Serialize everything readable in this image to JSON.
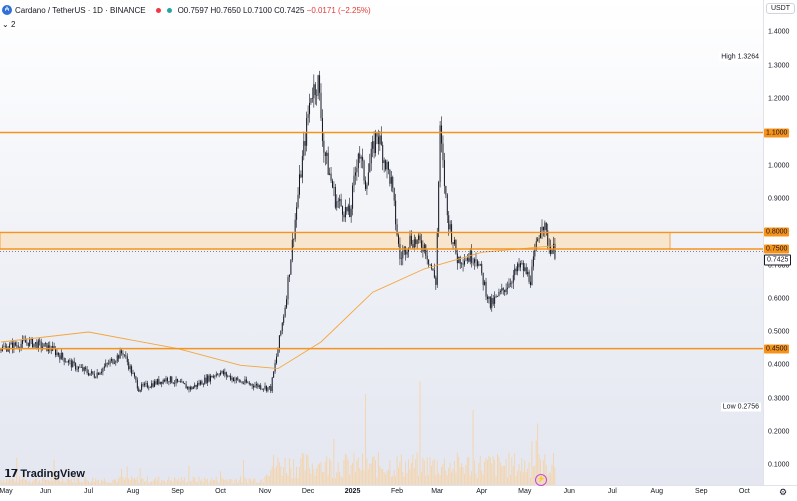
{
  "header": {
    "title": "Cardano / TetherUS · 1D · BINANCE",
    "open": "O0.7597",
    "high": "H0.7650",
    "low": "L0.7100",
    "close": "C0.7425",
    "change": "−0.0171 (−2.25%)",
    "indicator_count": "2",
    "currency": "USDT"
  },
  "labels": {
    "high_label": "High",
    "high_value": "1.3264",
    "low_label": "Low",
    "low_value": "0.2756"
  },
  "branding": {
    "logo_text": "TradingView"
  },
  "colors": {
    "level": "#f7931a",
    "zone_fill": "#f9e3c5",
    "candle": "#131722",
    "ma": "#f4a53c",
    "volume": "#f5d3a8"
  },
  "chart_data": {
    "type": "candlestick",
    "symbol": "ADAUSDT",
    "exchange": "BINANCE",
    "interval": "1D",
    "ylim": [
      0.0,
      1.45
    ],
    "y_scale": "log",
    "y_ticks": [
      "1.4000",
      "1.3000",
      "1.2000",
      "1.1000",
      "1.0000",
      "0.9000",
      "0.8000",
      "0.7000",
      "0.6000",
      "0.5000",
      "0.4000",
      "0.3000",
      "0.2000",
      "0.1000"
    ],
    "y_badges": [
      {
        "value": "1.1000",
        "bg": "#f7931a"
      },
      {
        "value": "0.8000",
        "bg": "#f7931a"
      },
      {
        "value": "0.7500",
        "bg": "#f7931a"
      },
      {
        "value": "0.7425",
        "bg": "#ffffff"
      },
      {
        "value": "0.4500",
        "bg": "#f7931a"
      }
    ],
    "x_ticks": [
      "May",
      "Jun",
      "Jul",
      "Aug",
      "Sep",
      "Oct",
      "Nov",
      "Dec",
      "2025",
      "Feb",
      "Mar",
      "Apr",
      "May",
      "Jun",
      "Jul",
      "Aug",
      "Sep",
      "Oct"
    ],
    "horizontal_levels": [
      1.1,
      0.8,
      0.75,
      0.45
    ],
    "zone": {
      "from": 0.75,
      "to": 0.8
    },
    "last_price": 0.7425,
    "high": 1.3264,
    "low": 0.2756,
    "price_path": [
      [
        "2024-05-01",
        0.45
      ],
      [
        "2024-05-20",
        0.47
      ],
      [
        "2024-06-05",
        0.45
      ],
      [
        "2024-06-20",
        0.4
      ],
      [
        "2024-07-05",
        0.37
      ],
      [
        "2024-07-25",
        0.44
      ],
      [
        "2024-08-05",
        0.33
      ],
      [
        "2024-08-25",
        0.36
      ],
      [
        "2024-09-10",
        0.33
      ],
      [
        "2024-09-30",
        0.38
      ],
      [
        "2024-10-15",
        0.35
      ],
      [
        "2024-11-05",
        0.33
      ],
      [
        "2024-11-10",
        0.45
      ],
      [
        "2024-11-15",
        0.58
      ],
      [
        "2024-11-25",
        0.95
      ],
      [
        "2024-12-03",
        1.22
      ],
      [
        "2024-12-08",
        1.25
      ],
      [
        "2024-12-12",
        1.05
      ],
      [
        "2024-12-20",
        0.9
      ],
      [
        "2024-12-30",
        0.85
      ],
      [
        "2025-01-05",
        1.05
      ],
      [
        "2025-01-10",
        0.95
      ],
      [
        "2025-01-18",
        1.1
      ],
      [
        "2025-01-28",
        0.95
      ],
      [
        "2025-02-03",
        0.72
      ],
      [
        "2025-02-10",
        0.78
      ],
      [
        "2025-02-20",
        0.76
      ],
      [
        "2025-02-28",
        0.65
      ],
      [
        "2025-03-03",
        1.1
      ],
      [
        "2025-03-08",
        0.85
      ],
      [
        "2025-03-15",
        0.72
      ],
      [
        "2025-03-28",
        0.73
      ],
      [
        "2025-04-07",
        0.58
      ],
      [
        "2025-04-15",
        0.62
      ],
      [
        "2025-04-28",
        0.7
      ],
      [
        "2025-05-05",
        0.66
      ],
      [
        "2025-05-10",
        0.78
      ],
      [
        "2025-05-13",
        0.84
      ],
      [
        "2025-05-18",
        0.76
      ],
      [
        "2025-05-22",
        0.7425
      ]
    ],
    "moving_average_path": [
      [
        "2024-05-01",
        0.47
      ],
      [
        "2024-07-01",
        0.5
      ],
      [
        "2024-09-01",
        0.45
      ],
      [
        "2024-10-15",
        0.4
      ],
      [
        "2024-11-10",
        0.39
      ],
      [
        "2024-12-10",
        0.47
      ],
      [
        "2025-01-15",
        0.62
      ],
      [
        "2025-02-20",
        0.69
      ],
      [
        "2025-04-01",
        0.74
      ],
      [
        "2025-05-22",
        0.76
      ]
    ]
  }
}
